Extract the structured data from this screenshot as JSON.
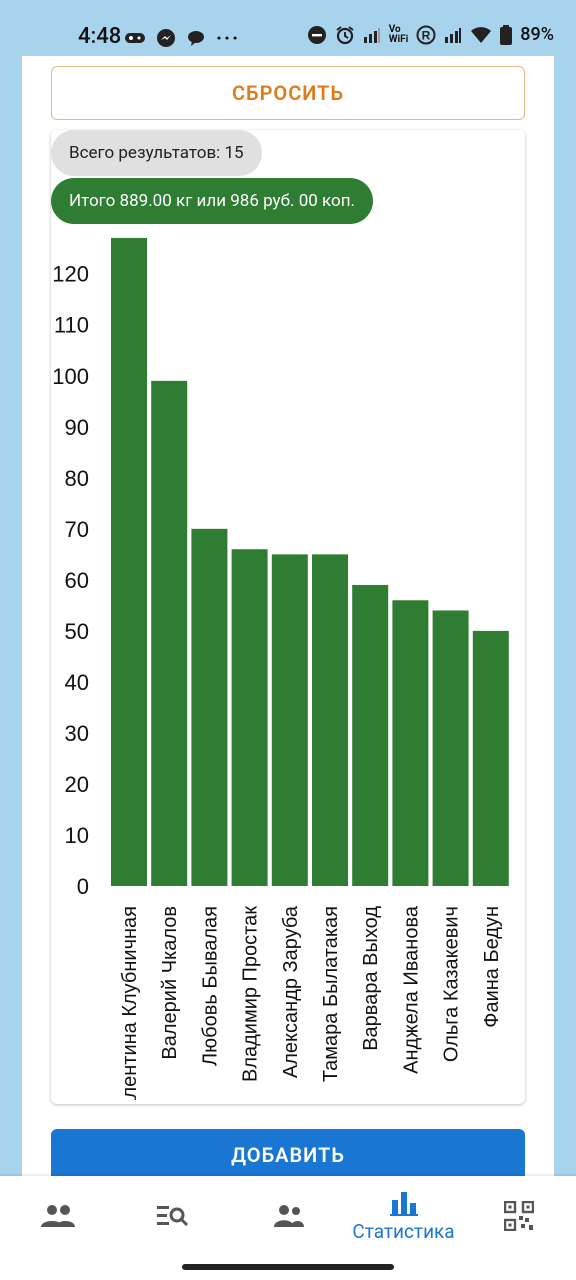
{
  "status_bar": {
    "time": "4:48",
    "battery": "89%",
    "vowifi": "Vo\nWiFi",
    "registered": "R"
  },
  "actions": {
    "reset_label": "СБРОСИТЬ",
    "add_label": "ДОБАВИТЬ"
  },
  "summary": {
    "total_results": "Всего результатов: 15",
    "total_amount": "Итого 889.00 кг или 986 руб. 00 коп."
  },
  "chart_data": {
    "type": "bar",
    "categories": [
      "Валентина Клубничная",
      "Валерий Чкалов",
      "Любовь Бывалая",
      "Владимир Простак",
      "Александр Заруба",
      "Тамара Былатакая",
      "Варвара Выход",
      "Анджела Иванова",
      "Ольга Казакевич",
      "Фаина Бедун"
    ],
    "values": [
      127,
      99,
      70,
      66,
      65,
      65,
      59,
      56,
      54,
      50
    ],
    "yticks": [
      0,
      10,
      20,
      30,
      40,
      50,
      60,
      70,
      80,
      90,
      100,
      110,
      120
    ],
    "ylim": [
      0,
      127
    ],
    "bar_color": "#2e7d32",
    "grid": false
  },
  "bottom_nav": {
    "items": [
      {
        "icon": "people-icon",
        "label": ""
      },
      {
        "icon": "search-list-icon",
        "label": ""
      },
      {
        "icon": "group-icon",
        "label": ""
      },
      {
        "icon": "bar-chart-icon",
        "label": "Статистика",
        "active": true
      },
      {
        "icon": "qr-code-icon",
        "label": ""
      }
    ]
  },
  "colors": {
    "accent_orange": "#e07b17",
    "primary_blue": "#1976d2",
    "green": "#2e7d32",
    "background": "#a8d3ec"
  }
}
